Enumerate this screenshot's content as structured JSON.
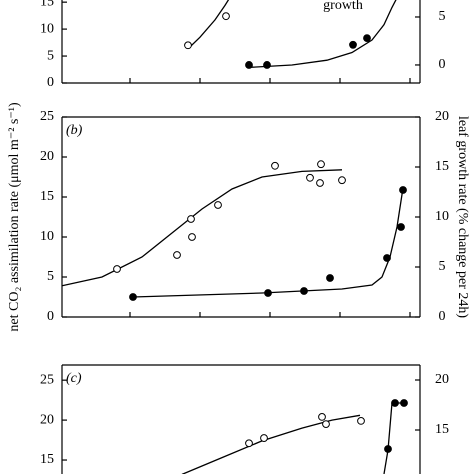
{
  "chart_data": [
    {
      "type": "scatter",
      "annotation": "growth",
      "xlim": [
        0,
        358
      ],
      "xticks": [
        68,
        138,
        208,
        278,
        348
      ],
      "ylim": [
        0,
        15.4
      ],
      "yticks": [
        0,
        5,
        10,
        15
      ],
      "y2lim": [
        -1.88,
        6.77
      ],
      "y2ticks": [
        0,
        5
      ],
      "series": [
        {
          "marker": "open",
          "color": "#000000",
          "x": [
            126,
            164
          ],
          "values": [
            7.0,
            12.4
          ]
        },
        {
          "marker": "filled",
          "color": "#000000",
          "axis": "y2",
          "x": [
            187,
            205,
            291,
            305
          ],
          "values": [
            0,
            0,
            2.1,
            2.8
          ]
        },
        {
          "marker": "none",
          "color": "#000000",
          "x": [
            128,
            138,
            153,
            163,
            170
          ],
          "values": [
            6.7,
            8.5,
            11.7,
            14.4,
            16.5
          ]
        },
        {
          "marker": "none",
          "color": "#000000",
          "axis": "y2",
          "x": [
            187,
            230,
            265,
            290,
            310,
            322,
            330,
            336
          ],
          "values": [
            -0.25,
            0,
            0.5,
            1.3,
            2.6,
            4.2,
            6.0,
            7.2
          ]
        }
      ]
    },
    {
      "type": "scatter",
      "label": "(b)",
      "ylabel": "net CO₂ assimilation rate (μmol m⁻² s⁻¹)",
      "y2label": "leaf growth rate (% change per 24h)",
      "xlim": [
        0,
        358
      ],
      "xticks": [
        68,
        138,
        208,
        278,
        348
      ],
      "ylim": [
        0,
        25
      ],
      "yticks": [
        0,
        5,
        10,
        15,
        20,
        25
      ],
      "y2lim": [
        0,
        20
      ],
      "y2ticks": [
        0,
        5,
        10,
        15,
        20
      ],
      "series": [
        {
          "marker": "open",
          "color": "#000000",
          "x": [
            55,
            115,
            129,
            130,
            156,
            213,
            248,
            259,
            258,
            280
          ],
          "values": [
            6.0,
            7.75,
            12.25,
            10.0,
            14.0,
            18.9,
            17.4,
            19.1,
            16.75,
            17.1
          ]
        },
        {
          "marker": "filled",
          "color": "#000000",
          "axis": "y2",
          "x": [
            71,
            206,
            242,
            268,
            325,
            339,
            341
          ],
          "values": [
            2.0,
            2.4,
            2.6,
            3.9,
            5.9,
            9.0,
            12.7
          ]
        },
        {
          "marker": "none",
          "color": "#000000",
          "x": [
            0,
            40,
            80,
            110,
            140,
            170,
            200,
            240,
            280
          ],
          "values": [
            3.9,
            5.0,
            7.5,
            10.5,
            13.5,
            16.0,
            17.5,
            18.2,
            18.4
          ]
        },
        {
          "marker": "none",
          "color": "#000000",
          "axis": "y2",
          "x": [
            71,
            200,
            280,
            310,
            320,
            328,
            335,
            341
          ],
          "values": [
            2.0,
            2.4,
            2.8,
            3.2,
            4.0,
            6.0,
            9.0,
            12.9
          ]
        }
      ]
    },
    {
      "type": "scatter",
      "label": "(c)",
      "xlim": [
        0,
        358
      ],
      "ylim": [
        13.25,
        26.9
      ],
      "yticks": [
        15,
        20,
        25
      ],
      "y2lim": [
        10.6,
        21.5
      ],
      "y2ticks": [
        15,
        20
      ],
      "series": [
        {
          "marker": "open",
          "color": "#000000",
          "x": [
            187,
            202,
            260,
            264,
            299
          ],
          "values": [
            17.1,
            17.75,
            20.4,
            19.5,
            19.9
          ]
        },
        {
          "marker": "filled",
          "color": "#000000",
          "axis": "y2",
          "x": [
            326,
            333,
            342
          ],
          "values": [
            13.1,
            17.7,
            17.7
          ]
        },
        {
          "marker": "none",
          "color": "#000000",
          "x": [
            120,
            160,
            200,
            240,
            270,
            298
          ],
          "values": [
            13.2,
            15.3,
            17.4,
            19.0,
            20.0,
            20.6
          ]
        },
        {
          "marker": "none",
          "color": "#000000",
          "axis": "y2",
          "x": [
            322,
            326,
            330,
            342
          ],
          "values": [
            10.6,
            13.0,
            17.7,
            17.7
          ]
        }
      ]
    }
  ]
}
